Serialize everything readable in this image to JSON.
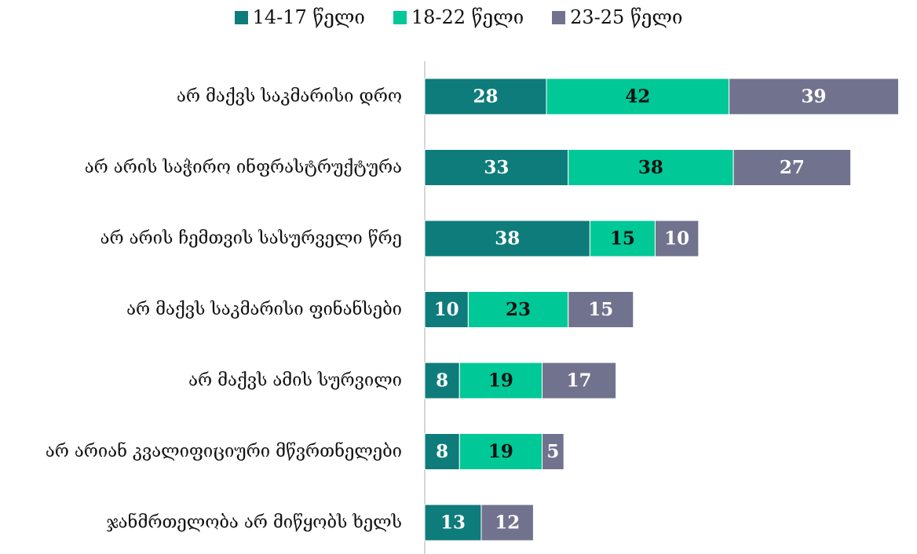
{
  "chart_data": {
    "type": "bar",
    "orientation": "horizontal",
    "stacked": true,
    "categories": [
      "არ მაქვს საკმარისი დრო",
      "არ არის საჭირო ინფრასტრუქტურა",
      "არ არის ჩემთვის სასურველი წრე",
      "არ მაქვს საკმარისი ფინანსები",
      "არ მაქვს ამის სურვილი",
      "არ არიან კვალიფიციური მწვრთნელები",
      "ჯანმრთელობა არ მიწყობს ხელს"
    ],
    "series": [
      {
        "name": "14-17 წელი",
        "color": "#0e7c7b",
        "label_color": "#ffffff",
        "values": [
          28,
          33,
          38,
          10,
          8,
          8,
          13
        ]
      },
      {
        "name": "18-22 წელი",
        "color": "#00c896",
        "label_color": "#111111",
        "values": [
          42,
          38,
          15,
          23,
          19,
          19,
          null
        ]
      },
      {
        "name": "23-25 წელი",
        "color": "#71738e",
        "label_color": "#ffffff",
        "values": [
          39,
          27,
          10,
          15,
          17,
          5,
          12
        ]
      }
    ],
    "legend_position": "top-center",
    "title": "",
    "xlabel": "",
    "ylabel": "",
    "grid": false
  }
}
